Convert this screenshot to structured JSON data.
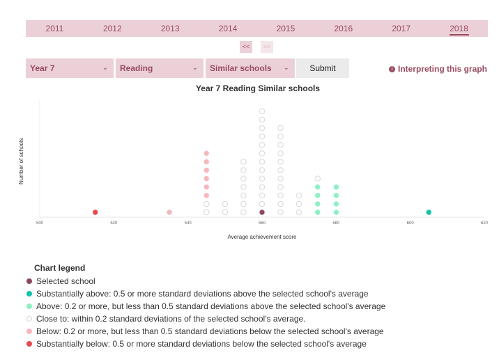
{
  "years": [
    "2011",
    "2012",
    "2013",
    "2014",
    "2015",
    "2016",
    "2017",
    "2018"
  ],
  "active_year": "2018",
  "pager": {
    "prev": "<<",
    "next": ">>"
  },
  "filters": {
    "year": "Year 7",
    "domain": "Reading",
    "comparison": "Similar schools"
  },
  "submit_label": "Submit",
  "interpreting_label": "Interpreting this graph",
  "chart_data": {
    "type": "scatter",
    "title": "Year 7 Reading Similar schools",
    "xlabel": "Average achievement score",
    "ylabel": "Number of schools",
    "xlim": [
      500,
      620
    ],
    "xticks": [
      500,
      520,
      540,
      560,
      580,
      600,
      620
    ],
    "columns": [
      {
        "x": 515,
        "counts": {
          "substantially_below": 1
        }
      },
      {
        "x": 535,
        "counts": {
          "below": 1
        }
      },
      {
        "x": 545,
        "counts": {
          "below": 6,
          "close": 2
        }
      },
      {
        "x": 550,
        "counts": {
          "close": 2
        }
      },
      {
        "x": 555,
        "counts": {
          "close": 7
        }
      },
      {
        "x": 560,
        "counts": {
          "close": 12,
          "selected": 1
        }
      },
      {
        "x": 565,
        "counts": {
          "close": 11
        }
      },
      {
        "x": 570,
        "counts": {
          "close": 3
        }
      },
      {
        "x": 575,
        "counts": {
          "close": 1,
          "above": 4
        }
      },
      {
        "x": 580,
        "counts": {
          "above": 4
        }
      },
      {
        "x": 605,
        "counts": {
          "substantially_above": 1
        }
      }
    ],
    "stack_order": [
      "selected",
      "substantially_above",
      "above",
      "close",
      "below",
      "substantially_below"
    ],
    "colors": {
      "selected": "#8b4a62",
      "substantially_above": "#12c3a8",
      "above": "#8ef0c3",
      "close_stroke": "#d6d6df",
      "below": "#f5b8be",
      "substantially_below": "#e8484e"
    },
    "legend_title": "Chart legend",
    "legend": [
      {
        "key": "selected",
        "label": "Selected school"
      },
      {
        "key": "substantially_above",
        "label": "Substantially above: 0.5 or more standard deviations above the selected school's average"
      },
      {
        "key": "above",
        "label": "Above: 0.2 or more, but less than 0.5 standard deviations above the selected school's average"
      },
      {
        "key": "close",
        "label": "Close to: within 0.2 standard deviations of the selected school's average."
      },
      {
        "key": "below",
        "label": "Below: 0.2 or more, but less than 0.5 standard deviations below the selected school's average"
      },
      {
        "key": "substantially_below",
        "label": "Substantially below: 0.5 or more standard deviations below the selected school's average"
      }
    ]
  }
}
